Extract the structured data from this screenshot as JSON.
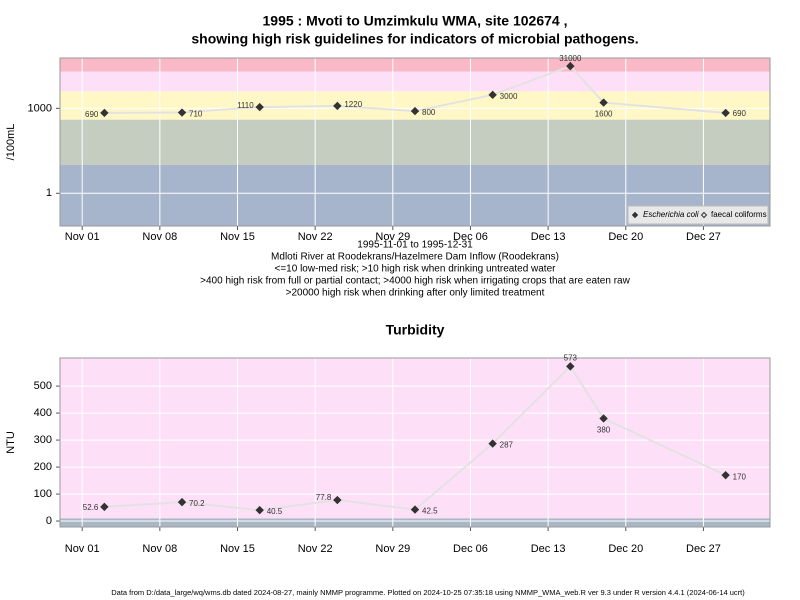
{
  "chart_data": [
    {
      "type": "line",
      "title": [
        "1995 : Mvoti to Umzimkulu WMA, site 102674 ,",
        "showing high risk guidelines for indicators of microbial pathogens."
      ],
      "ylabel": "/100mL",
      "notes": [
        "1995-11-01 to 1995-12-31",
        "Mdloti River at Roodekrans/Hazelmere Dam Inflow (Roodekrans)",
        "<=10 low-med risk; >10 high risk when drinking untreated water",
        ">400 high risk from full or partial contact; >4000 high risk when irrigating crops that are eaten raw",
        ">20000 high risk when drinking after only limited treatment"
      ],
      "x": [
        "1995-11-03",
        "1995-11-10",
        "1995-11-17",
        "1995-11-24",
        "1995-12-01",
        "1995-12-08",
        "1995-12-15",
        "1995-12-18",
        "1995-12-29"
      ],
      "xlim": [
        "1995-10-30",
        "1996-01-02"
      ],
      "xticks": [
        {
          "value": "1995-11-01",
          "label": "Nov 01"
        },
        {
          "value": "1995-11-08",
          "label": "Nov 08"
        },
        {
          "value": "1995-11-15",
          "label": "Nov 15"
        },
        {
          "value": "1995-11-22",
          "label": "Nov 22"
        },
        {
          "value": "1995-11-29",
          "label": "Nov 29"
        },
        {
          "value": "1995-12-06",
          "label": "Dec 06"
        },
        {
          "value": "1995-12-13",
          "label": "Dec 13"
        },
        {
          "value": "1995-12-20",
          "label": "Dec 20"
        },
        {
          "value": "1995-12-27",
          "label": "Dec 27"
        }
      ],
      "log_y": true,
      "ylim": [
        0.07,
        60000
      ],
      "yticks": [
        1,
        1000
      ],
      "grid": true,
      "band_breaks": [
        10,
        400,
        4000,
        20000
      ],
      "band_colors": [
        "#a6b5cb",
        "#c5cdc1",
        "#fff8c6",
        "#fde0f8",
        "#f9b9c6"
      ],
      "line_color": "#e2e2e2",
      "legend": "lower right",
      "series": [
        {
          "name": "Escherichia coli",
          "color": "#333333",
          "marker": "filled",
          "values": [
            690,
            710,
            1110,
            1220,
            800,
            3000,
            31000,
            1600,
            690
          ]
        },
        {
          "name": "faecal coliforms",
          "color": "#333333",
          "marker": "open",
          "values": [
            null,
            null,
            null,
            null,
            null,
            null,
            null,
            null,
            null
          ]
        }
      ]
    },
    {
      "type": "line",
      "title": "Turbidity",
      "ylabel": "NTU",
      "x": [
        "1995-11-03",
        "1995-11-10",
        "1995-11-17",
        "1995-11-24",
        "1995-12-01",
        "1995-12-08",
        "1995-12-15",
        "1995-12-18",
        "1995-12-29"
      ],
      "xlim": [
        "1995-10-30",
        "1996-01-02"
      ],
      "xticks": [
        {
          "value": "1995-11-01",
          "label": "Nov 01"
        },
        {
          "value": "1995-11-08",
          "label": "Nov 08"
        },
        {
          "value": "1995-11-15",
          "label": "Nov 15"
        },
        {
          "value": "1995-11-22",
          "label": "Nov 22"
        },
        {
          "value": "1995-11-29",
          "label": "Nov 29"
        },
        {
          "value": "1995-12-06",
          "label": "Dec 06"
        },
        {
          "value": "1995-12-13",
          "label": "Dec 13"
        },
        {
          "value": "1995-12-20",
          "label": "Dec 20"
        },
        {
          "value": "1995-12-27",
          "label": "Dec 27"
        }
      ],
      "log_y": false,
      "ylim": [
        -22,
        604
      ],
      "yticks": [
        0,
        100,
        200,
        300,
        400,
        500
      ],
      "grid": true,
      "band_breaks": [
        10
      ],
      "band_colors": [
        "#a8b6c6",
        "#fde0f8"
      ],
      "line_color": "#e2e2e2",
      "series": [
        {
          "name": "Turbidity",
          "color": "#333333",
          "marker": "filled",
          "values": [
            52.6,
            70.2,
            40.5,
            77.8,
            42.5,
            287,
            573,
            380,
            170
          ]
        }
      ]
    }
  ],
  "footer": "Data from D:/data_large/wq/wms.db dated 2024-08-27, mainly NMMP programme. Plotted on 2024-10-25 07:35:18 using NMMP_WMA_web.R ver 9.3 under R version 4.4.1 (2024-06-14 ucrt)"
}
